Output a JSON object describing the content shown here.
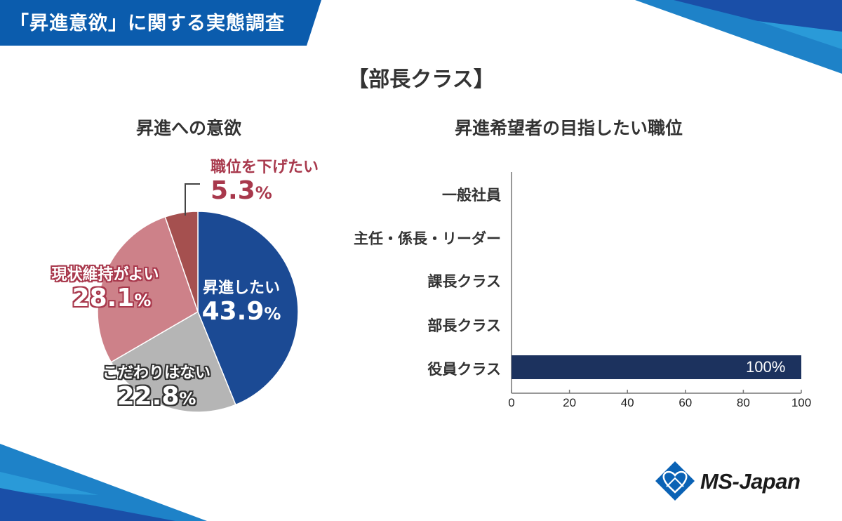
{
  "header": {
    "title": "「昇進意欲」に関する実態調査",
    "bg_color": "#0b5cad"
  },
  "section_title": "【部長クラス】",
  "pie_chart": {
    "title": "昇進への意欲",
    "slices": [
      {
        "label": "昇進したい",
        "value": 43.9,
        "value_text": "43.9",
        "color": "#1b4a94"
      },
      {
        "label": "こだわりはない",
        "value": 22.8,
        "value_text": "22.8",
        "color": "#b5b5b5"
      },
      {
        "label": "現状維持がよい",
        "value": 28.1,
        "value_text": "28.1",
        "color": "#cd8189"
      },
      {
        "label": "職位を下げたい",
        "value": 5.3,
        "value_text": "5.3",
        "color": "#a5504f"
      }
    ],
    "pct_symbol": "%"
  },
  "bar_chart": {
    "title": "昇進希望者の目指したい職位",
    "categories": [
      "一般社員",
      "主任・係長・リーダー",
      "課長クラス",
      "部長クラス",
      "役員クラス"
    ],
    "values": [
      0,
      0,
      0,
      0,
      100
    ],
    "value_labels": [
      "",
      "",
      "",
      "",
      "100%"
    ],
    "ticks": [
      "0",
      "20",
      "40",
      "60",
      "80",
      "100"
    ],
    "bar_color": "#1c325e"
  },
  "logo": {
    "text": "MS-Japan"
  },
  "chart_data": [
    {
      "type": "pie",
      "title": "昇進への意欲",
      "categories": [
        "昇進したい",
        "こだわりはない",
        "現状維持がよい",
        "職位を下げたい"
      ],
      "values": [
        43.9,
        22.8,
        28.1,
        5.3
      ],
      "unit": "%",
      "start_angle": "12 o'clock, clockwise",
      "colors": [
        "#1b4a94",
        "#b5b5b5",
        "#cd8189",
        "#a5504f"
      ]
    },
    {
      "type": "bar",
      "orientation": "horizontal",
      "title": "昇進希望者の目指したい職位",
      "categories": [
        "一般社員",
        "主任・係長・リーダー",
        "課長クラス",
        "部長クラス",
        "役員クラス"
      ],
      "values": [
        0,
        0,
        0,
        0,
        100
      ],
      "data_labels": [
        "",
        "",
        "",
        "",
        "100%"
      ],
      "xlabel": "",
      "ylabel": "",
      "xlim": [
        0,
        100
      ],
      "xticks": [
        0,
        20,
        40,
        60,
        80,
        100
      ],
      "grid": false,
      "legend": "none"
    }
  ]
}
